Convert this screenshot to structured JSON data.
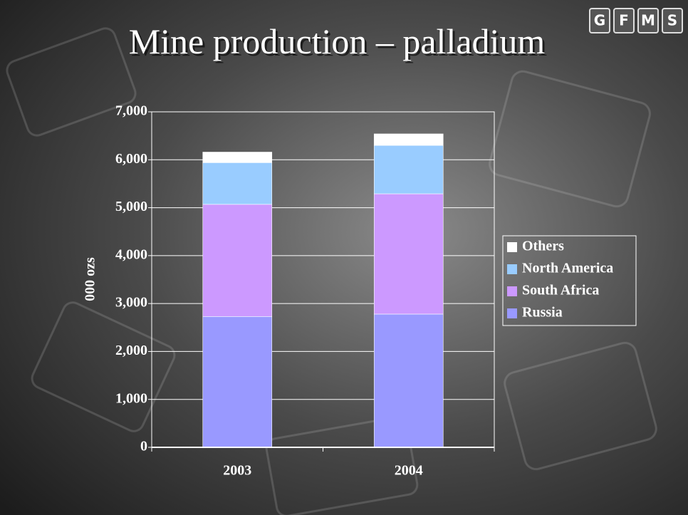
{
  "logo": [
    "G",
    "F",
    "M",
    "S"
  ],
  "chart_data": {
    "type": "stacked-bar",
    "title": "Mine production – palladium",
    "y_label": "000 ozs",
    "categories": [
      "2003",
      "2004"
    ],
    "series": [
      {
        "name": "Russia",
        "color": "#9999ff",
        "values": [
          2730,
          2780
        ]
      },
      {
        "name": "South Africa",
        "color": "#cc99ff",
        "values": [
          2340,
          2510
        ]
      },
      {
        "name": "North America",
        "color": "#99ccff",
        "values": [
          870,
          1010
        ]
      },
      {
        "name": "Others",
        "color": "#ffffff",
        "values": [
          220,
          240
        ]
      }
    ],
    "ylim": [
      0,
      7000
    ],
    "yticks": [
      0,
      {
        "value": 1000,
        "label": "1,000"
      },
      {
        "value": 2000,
        "label": "2,000"
      },
      {
        "value": 3000,
        "label": "3,000"
      },
      {
        "value": 4000,
        "label": "4,000"
      },
      {
        "value": 5000,
        "label": "5,000"
      },
      {
        "value": 6000,
        "label": "6,000"
      },
      {
        "value": 7000,
        "label": "7,000"
      }
    ],
    "grid": true,
    "legend": "right"
  }
}
